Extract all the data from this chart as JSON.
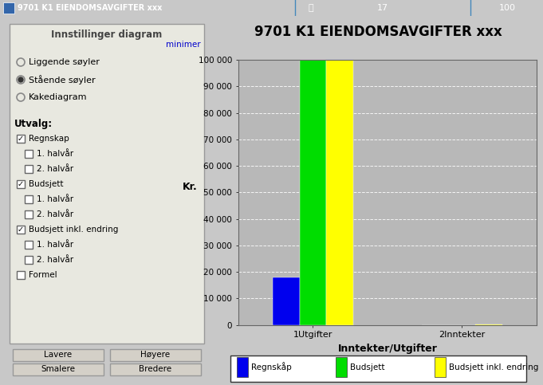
{
  "title": "9701 K1 EIENDOMSAVGIFTER xxx",
  "top_bar_color": "#5ba3d0",
  "top_bar_text": "9701 K1 EIENDOMSAVGIFTER xxx",
  "top_bar_num1": "17",
  "top_bar_num2": "100",
  "left_panel_bg": "#d4d0c8",
  "left_panel_inner_bg": "#e8e8e0",
  "left_panel_title": "Innstillinger diagram",
  "minimize_text": "minimer",
  "minimize_color": "#0000cc",
  "radio_options": [
    "Liggende søyler",
    "Stående søyler",
    "Kakediagram"
  ],
  "radio_selected": 1,
  "utvalg_title": "Utvalg:",
  "checkboxes": [
    {
      "label": "Regnskap",
      "checked": true,
      "indent": false
    },
    {
      "label": "1. halvår",
      "checked": false,
      "indent": true
    },
    {
      "label": "2. halvår",
      "checked": false,
      "indent": true
    },
    {
      "label": "Budsjett",
      "checked": true,
      "indent": false
    },
    {
      "label": "1. halvår",
      "checked": false,
      "indent": true
    },
    {
      "label": "2. halvår",
      "checked": false,
      "indent": true
    },
    {
      "label": "Budsjett inkl. endring",
      "checked": true,
      "indent": false
    },
    {
      "label": "1. halvår",
      "checked": false,
      "indent": true
    },
    {
      "label": "2. halvår",
      "checked": false,
      "indent": true
    },
    {
      "label": "Formel",
      "checked": false,
      "indent": false
    }
  ],
  "buttons": [
    [
      "Smalere",
      "Bredere"
    ],
    [
      "Lavere",
      "Høyere"
    ]
  ],
  "chart_bg": "#b8b8b8",
  "chart_title": "9701 K1 EIENDOMSAVGIFTER xxx",
  "xlabel": "Inntekter/Utgifter",
  "ylabel": "Kr.",
  "ylim": [
    0,
    100000
  ],
  "yticks": [
    0,
    10000,
    20000,
    30000,
    40000,
    50000,
    60000,
    70000,
    80000,
    90000,
    100000
  ],
  "ytick_labels": [
    "0",
    "10 000",
    "20 000",
    "30 000",
    "40 000",
    "50 000",
    "60 000",
    "70 000",
    "80 000",
    "90 000",
    "100 000"
  ],
  "categories": [
    "1Utgifter",
    "2Inntekter"
  ],
  "series": [
    {
      "label": "Regnskåp",
      "color": "#0000ee",
      "values": [
        18000,
        0
      ]
    },
    {
      "label": "Budsjett",
      "color": "#00dd00",
      "values": [
        100000,
        0
      ]
    },
    {
      "label": "Budsjett inkl. endring",
      "color": "#ffff00",
      "values": [
        100000,
        200
      ]
    }
  ],
  "grid_color": "#ffffff",
  "outer_bg": "#c8c8c8",
  "legend_bg": "#ffffff"
}
